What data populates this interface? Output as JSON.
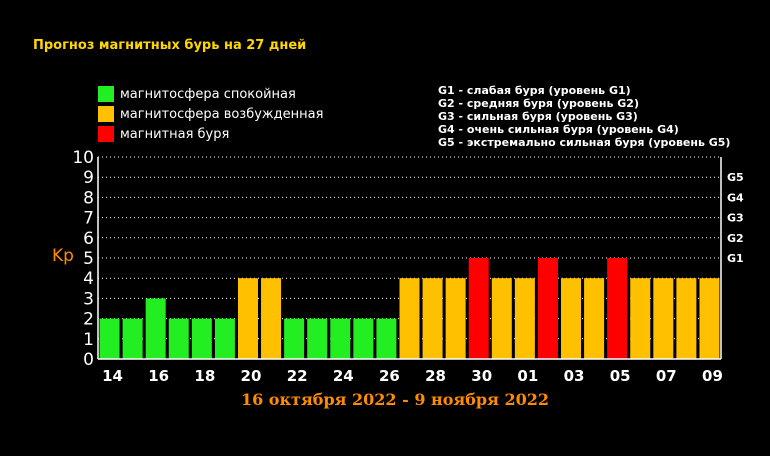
{
  "title": "Прогноз магнитных бурь на 27 дней",
  "legend": {
    "items": [
      {
        "label": "магнитосфера спокойная",
        "color": "#22ee22"
      },
      {
        "label": "магнитосфера возбужденная",
        "color": "#ffc000"
      },
      {
        "label": "магнитная буря",
        "color": "#ff0000"
      }
    ]
  },
  "storm_levels": [
    "G1 - слабая буря (уровень G1)",
    "G2 - средняя буря (уровень G2)",
    "G3 - сильная буря (уровень G3)",
    "G4 - очень сильная буря (уровень G4)",
    "G5 - экстремально сильная буря (уровень G5)"
  ],
  "ylabel": "Kp",
  "date_range": "16 октября 2022 - 9 ноября 2022",
  "chart_data": {
    "type": "bar",
    "ylim": [
      0,
      10
    ],
    "yticks": [
      0,
      1,
      2,
      3,
      4,
      5,
      6,
      7,
      8,
      9,
      10
    ],
    "right_ticks": [
      {
        "value": 5,
        "label": "G1"
      },
      {
        "value": 6,
        "label": "G2"
      },
      {
        "value": 7,
        "label": "G3"
      },
      {
        "value": 8,
        "label": "G4"
      },
      {
        "value": 9,
        "label": "G5"
      }
    ],
    "x_tick_labels": [
      "14",
      "16",
      "18",
      "20",
      "22",
      "24",
      "26",
      "28",
      "30",
      "01",
      "03",
      "05",
      "07",
      "09"
    ],
    "values": [
      2,
      2,
      3,
      2,
      2,
      2,
      4,
      4,
      2,
      2,
      2,
      2,
      2,
      4,
      4,
      4,
      5,
      4,
      4,
      5,
      4,
      4,
      5,
      4,
      4,
      4,
      4
    ],
    "colors": {
      "green": "#22ee22",
      "yellow": "#ffc000",
      "red": "#ff0000"
    },
    "grid": "dotted horizontal"
  }
}
